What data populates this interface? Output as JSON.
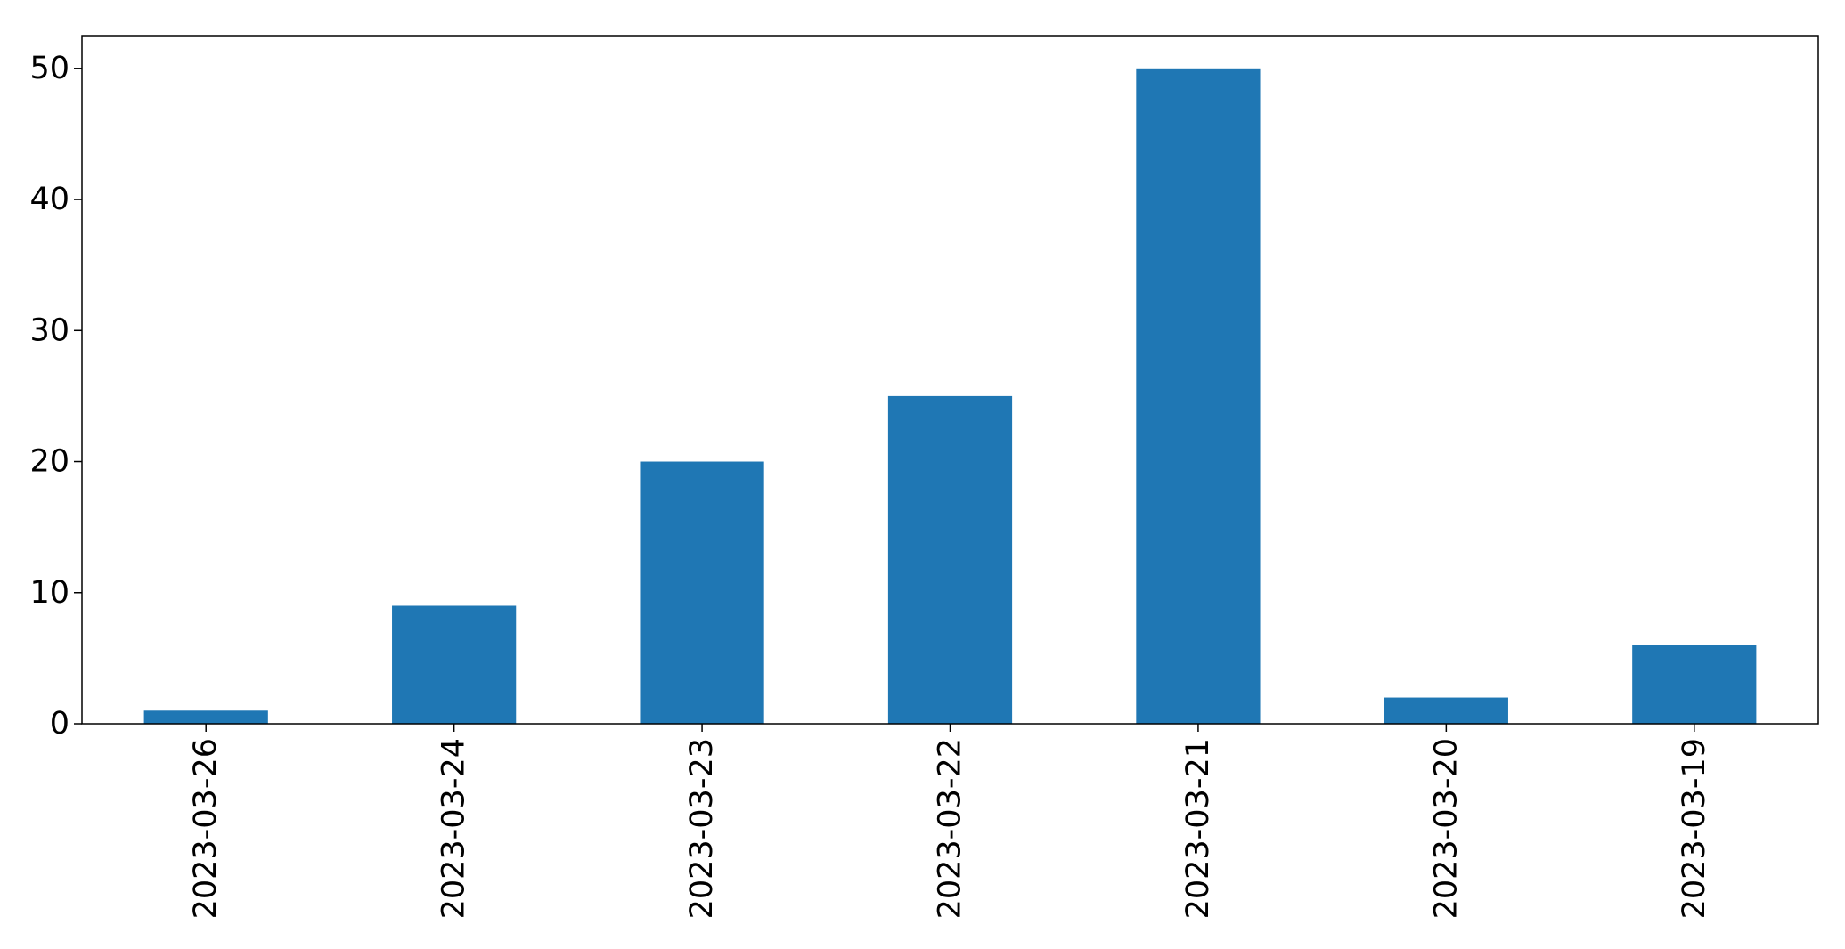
{
  "chart_data": {
    "type": "bar",
    "categories": [
      "2023-03-26",
      "2023-03-24",
      "2023-03-23",
      "2023-03-22",
      "2023-03-21",
      "2023-03-20",
      "2023-03-19"
    ],
    "values": [
      1,
      9,
      20,
      25,
      50,
      2,
      6
    ],
    "ylim": [
      0,
      52.5
    ],
    "yticks": [
      0,
      10,
      20,
      30,
      40,
      50
    ],
    "title": "",
    "xlabel": "",
    "ylabel": "",
    "grid": false,
    "bar_color": "#1f77b4"
  }
}
